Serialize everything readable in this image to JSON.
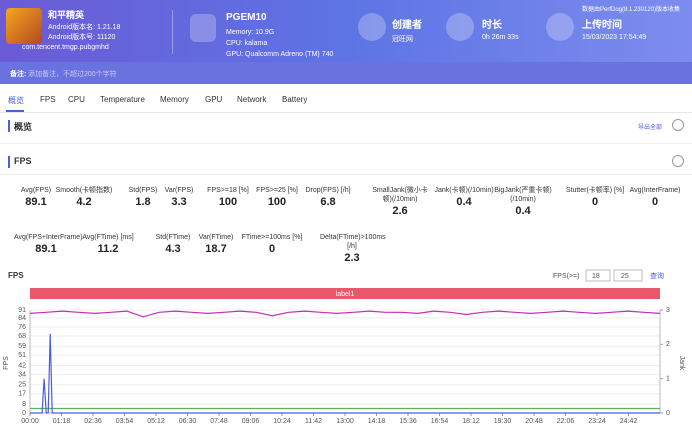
{
  "header": {
    "app": {
      "name": "和平精英",
      "version_name": "Android版本名: 1.21.18",
      "version_code": "Android版本号: 11120",
      "package": "com.tencent.tmgp.pubgmhd"
    },
    "device": {
      "model": "PGEM10",
      "memory": "Memory: 10.9G",
      "cpu": "CPU: kalama",
      "gpu": "GPU: Qualcomm Adreno (TM) 740"
    },
    "creator": {
      "label": "创建者",
      "value": "冠旺网"
    },
    "duration": {
      "label": "时长",
      "value": "0h 26m 33s"
    },
    "upload": {
      "label": "上传时间",
      "value": "15/03/2023 17:54:49"
    },
    "source": "数据由PerfDog(8.1.230120)版本收集"
  },
  "note": {
    "label": "备注:",
    "placeholder": "添加备注，不超过200个字符"
  },
  "tabs": [
    "概览",
    "FPS",
    "CPU",
    "Temperature",
    "Memory",
    "GPU",
    "Network",
    "Battery"
  ],
  "overview": {
    "title": "概览",
    "export": "导出全部"
  },
  "fps_section": {
    "title": "FPS",
    "row1": [
      {
        "label": "Avg(FPS)",
        "value": 89.1
      },
      {
        "label": "Smooth(卡顿指数)",
        "value": 4.2
      },
      {
        "label": "Std(FPS)",
        "value": 1.8
      },
      {
        "label": "Var(FPS)",
        "value": 3.3
      },
      {
        "label": "FPS>=18 [%]",
        "value": 100
      },
      {
        "label": "FPS>=25 [%]",
        "value": 100
      },
      {
        "label": "Drop(FPS) [/h]",
        "value": 6.8
      },
      {
        "label": "SmallJank(微小卡顿)(/10min)",
        "value": 2.6
      },
      {
        "label": "Jank(卡顿)(/10min)",
        "value": 0.4
      },
      {
        "label": "BigJank(严重卡顿)(/10min)",
        "value": 0.4
      },
      {
        "label": "Stutter(卡顿率) [%]",
        "value": 0
      },
      {
        "label": "Avg(InterFrame)",
        "value": 0
      }
    ],
    "row2": [
      {
        "label": "Avg(FPS+InterFrame)",
        "value": 89.1
      },
      {
        "label": "Avg(FTime) [ms]",
        "value": 11.2
      },
      {
        "label": "Std(FTime)",
        "value": 4.3
      },
      {
        "label": "Var(FTime)",
        "value": 18.7
      },
      {
        "label": "FTime>=100ms [%]",
        "value": 0
      },
      {
        "label": "Delta(FTime)>100ms [/h]",
        "value": 2.3
      }
    ]
  },
  "chart": {
    "type": "line",
    "title": "FPS",
    "filter_label": "FPS(>=)",
    "filter_values": [
      18,
      25
    ],
    "query": "查询",
    "band_label": "label1",
    "y_label": "FPS",
    "y2_label": "Jank",
    "xlim": [
      0,
      1560
    ],
    "ylim": [
      0,
      91
    ],
    "y2lim": [
      0,
      3
    ],
    "yticks": [
      0,
      8,
      17,
      25,
      34,
      42,
      51,
      59,
      68,
      76,
      84,
      91
    ],
    "y2ticks": [
      0,
      1,
      2,
      3
    ],
    "xticks": [
      {
        "value": 0,
        "label": "00:00"
      },
      {
        "value": 78,
        "label": "01:18"
      },
      {
        "value": 156,
        "label": "02:36"
      },
      {
        "value": 234,
        "label": "03:54"
      },
      {
        "value": 312,
        "label": "05:12"
      },
      {
        "value": 390,
        "label": "06:30"
      },
      {
        "value": 468,
        "label": "07:48"
      },
      {
        "value": 546,
        "label": "09:06"
      },
      {
        "value": 624,
        "label": "10:24"
      },
      {
        "value": 702,
        "label": "11:42"
      },
      {
        "value": 780,
        "label": "13:00"
      },
      {
        "value": 858,
        "label": "14:18"
      },
      {
        "value": 936,
        "label": "15:36"
      },
      {
        "value": 1014,
        "label": "16:54"
      },
      {
        "value": 1092,
        "label": "18:12"
      },
      {
        "value": 1170,
        "label": "19:30"
      },
      {
        "value": 1248,
        "label": "20:48"
      },
      {
        "value": 1326,
        "label": "22:06"
      },
      {
        "value": 1404,
        "label": "23:24"
      },
      {
        "value": 1482,
        "label": "24:42"
      }
    ],
    "series": [
      {
        "color": "#c02fb5",
        "x": [
          0,
          40,
          80,
          120,
          160,
          200,
          240,
          280,
          320,
          360,
          400,
          440,
          480,
          520,
          560,
          600,
          640,
          680,
          720,
          760,
          800,
          840,
          880,
          920,
          960,
          1000,
          1040,
          1080,
          1120,
          1160,
          1200,
          1240,
          1280,
          1320,
          1360,
          1400,
          1440,
          1480,
          1520,
          1560
        ],
        "values": [
          88,
          89,
          90,
          89,
          88,
          89,
          90,
          85,
          89,
          90,
          89,
          88,
          89,
          90,
          89,
          86,
          89,
          90,
          89,
          88,
          89,
          90,
          89,
          89,
          88,
          90,
          89,
          87,
          89,
          90,
          89,
          88,
          89,
          90,
          89,
          88,
          89,
          90,
          89,
          88
        ]
      },
      {
        "color": "#5ab55a",
        "x": [
          0,
          400,
          800,
          1200,
          1560
        ],
        "values": [
          4,
          4,
          4,
          4,
          4
        ]
      },
      {
        "color": "#4a5de0",
        "axis": "y2",
        "x": [
          0,
          30,
          35,
          40,
          45,
          50,
          55,
          60,
          70,
          400,
          800,
          1200,
          1560
        ],
        "values": [
          0,
          0,
          1.0,
          0,
          0,
          2.3,
          0,
          0,
          0,
          0,
          0,
          0,
          0
        ]
      }
    ]
  }
}
